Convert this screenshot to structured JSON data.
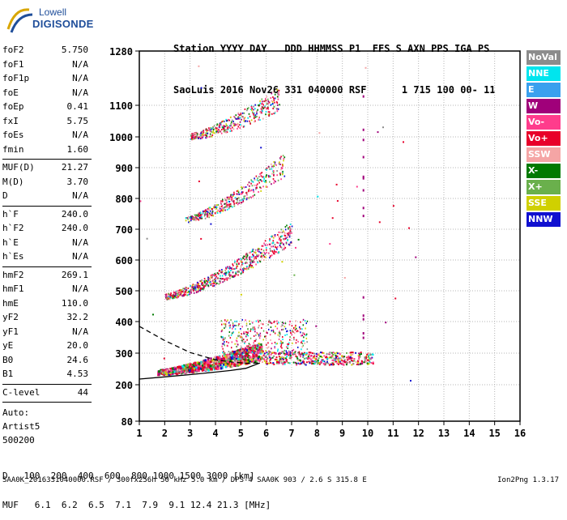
{
  "logo": {
    "top": "Lowell",
    "bottom": "DIGISONDE"
  },
  "header": {
    "line1": [
      "Station",
      "YYYY",
      "DAY",
      "DDD",
      "HHMMSS",
      "P1",
      "FFS",
      "S",
      "AXN",
      "PPS",
      "IGA",
      "PS"
    ],
    "line2": [
      "SaoLuis",
      "2016",
      "Nov26",
      "331",
      "040000",
      "RSF",
      "1",
      "715",
      "100",
      "00-",
      "11"
    ]
  },
  "params_group1": [
    {
      "name": "foF2",
      "value": "5.750"
    },
    {
      "name": "foF1",
      "value": "N/A"
    },
    {
      "name": "foF1p",
      "value": "N/A"
    },
    {
      "name": "foE",
      "value": "N/A"
    },
    {
      "name": "foEp",
      "value": "0.41"
    },
    {
      "name": "fxI",
      "value": "5.75"
    },
    {
      "name": "foEs",
      "value": "N/A"
    },
    {
      "name": "fmin",
      "value": "1.60"
    }
  ],
  "params_group2": [
    {
      "name": "MUF(D)",
      "value": "21.27"
    },
    {
      "name": "M(D)",
      "value": "3.70"
    },
    {
      "name": "D",
      "value": "N/A"
    }
  ],
  "params_group3": [
    {
      "name": "h`F",
      "value": "240.0"
    },
    {
      "name": "h`F2",
      "value": "240.0"
    },
    {
      "name": "h`E",
      "value": "N/A"
    },
    {
      "name": "h`Es",
      "value": "N/A"
    }
  ],
  "params_group4": [
    {
      "name": "hmF2",
      "value": "269.1"
    },
    {
      "name": "hmF1",
      "value": "N/A"
    },
    {
      "name": "hmE",
      "value": "110.0"
    },
    {
      "name": "yF2",
      "value": "32.2"
    },
    {
      "name": "yF1",
      "value": "N/A"
    },
    {
      "name": "yE",
      "value": "20.0"
    },
    {
      "name": "B0",
      "value": "24.6"
    },
    {
      "name": "B1",
      "value": "4.53"
    }
  ],
  "params_group5": [
    {
      "name": "C-level",
      "value": "44"
    }
  ],
  "auto_lines": [
    "Auto:",
    "Artist5",
    "500200"
  ],
  "legend": [
    {
      "label": "NoVal",
      "color": "#8c8c8c"
    },
    {
      "label": "NNE",
      "color": "#00e5ee"
    },
    {
      "label": "E",
      "color": "#3aa0ee"
    },
    {
      "label": "W",
      "color": "#a0007a"
    },
    {
      "label": "Vo-",
      "color": "#ff3c8c"
    },
    {
      "label": "Vo+",
      "color": "#e8002a"
    },
    {
      "label": "SSW",
      "color": "#f5a5a5"
    },
    {
      "label": "X-",
      "color": "#007a00"
    },
    {
      "label": "X+",
      "color": "#6ab04c"
    },
    {
      "label": "SSE",
      "color": "#d0d000"
    },
    {
      "label": "NNW",
      "color": "#1010d0"
    }
  ],
  "chart_data": {
    "type": "scatter",
    "title": "",
    "xlabel": "",
    "ylabel": "",
    "xlim": [
      1,
      16
    ],
    "xticks": [
      1,
      2,
      3,
      4,
      5,
      6,
      7,
      8,
      9,
      10,
      11,
      12,
      13,
      14,
      15,
      16
    ],
    "ylim": [
      80,
      1280
    ],
    "yscale": "nonlinear",
    "yticks": [
      80,
      200,
      300,
      400,
      500,
      600,
      700,
      800,
      900,
      1000,
      1100,
      1280
    ],
    "grid": "dotted",
    "traces": [
      {
        "name": "F2 1st hop",
        "f_start": 1.7,
        "f_end": 5.8,
        "h_start": 240,
        "h_end": 300,
        "spread_to_f": 10.2
      },
      {
        "name": "F2 2nd hop",
        "f_start": 2.0,
        "f_end": 7.0,
        "h_start": 480,
        "h_end": 680
      },
      {
        "name": "F2 3rd hop",
        "f_start": 2.8,
        "f_end": 6.7,
        "h_start": 730,
        "h_end": 900
      },
      {
        "name": "F2 4th hop",
        "f_start": 3.0,
        "f_end": 6.5,
        "h_start": 1000,
        "h_end": 1110
      }
    ],
    "profile_curves": [
      {
        "style": "solid",
        "f": [
          1.0,
          2.0,
          3.0,
          4.0,
          4.6,
          5.2,
          5.75
        ],
        "h": [
          218,
          225,
          232,
          240,
          245,
          252,
          269
        ]
      },
      {
        "style": "dashed",
        "f": [
          1.0,
          2.0,
          3.0,
          4.0,
          4.6,
          5.2,
          5.75
        ],
        "h": [
          385,
          340,
          302,
          279,
          272,
          268,
          269
        ]
      }
    ]
  },
  "distance_table": {
    "d_label": "D",
    "d_values": [
      "100",
      "200",
      "400",
      "600",
      "800",
      "1000",
      "1500",
      "3000"
    ],
    "d_unit": "[km]",
    "muf_label": "MUF",
    "muf_values": [
      "6.1",
      "6.2",
      "6.5",
      "7.1",
      "7.9",
      "9.1",
      "12.4",
      "21.3"
    ],
    "muf_unit": "[MHz]"
  },
  "footer": {
    "left": "SAA0K_2016331040000.RSF / 300fx256h 50 kHz 5.0 km / DPS-4 SAA0K 903 / 2.6 S 315.8 E",
    "right": "Ion2Png 1.3.17"
  }
}
